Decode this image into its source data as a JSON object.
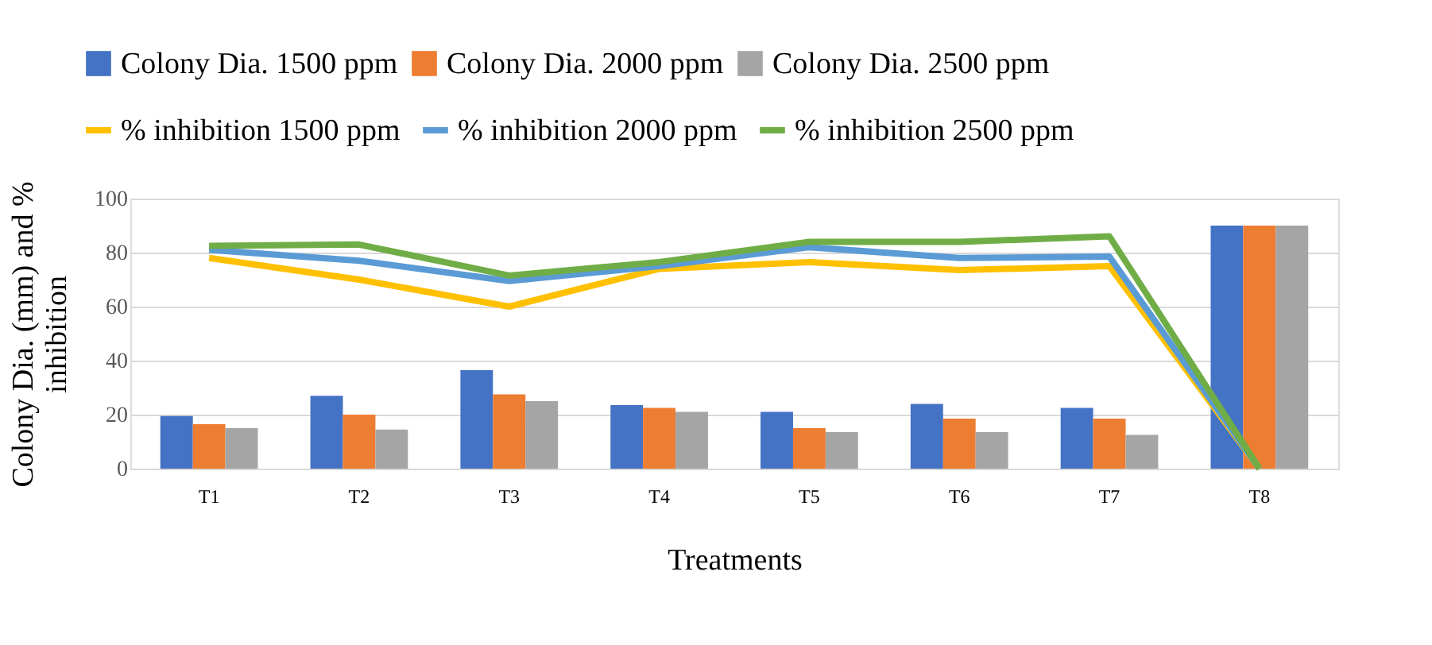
{
  "chart_data": {
    "type": "bar",
    "xlabel": "Treatments",
    "ylabel": "Colony Dia. (mm) and % inhibition",
    "categories": [
      "T1",
      "T2",
      "T3",
      "T4",
      "T5",
      "T6",
      "T7",
      "T8"
    ],
    "series": [
      {
        "name": "Colony Dia. 1500 ppm",
        "color": "#4472c4",
        "values": [
          19.5,
          27,
          36.5,
          23.5,
          21,
          24,
          22.5,
          90
        ]
      },
      {
        "name": "Colony Dia. 2000 ppm",
        "color": "#ed7d31",
        "values": [
          16.5,
          20,
          27.5,
          22.5,
          15,
          18.5,
          18.5,
          90
        ]
      },
      {
        "name": "Colony Dia. 2500 ppm",
        "color": "#a5a5a5",
        "values": [
          15,
          14.5,
          25,
          21,
          13.5,
          13.5,
          12.5,
          90
        ]
      },
      {
        "name": "% inhibition 1500 ppm",
        "type": "line",
        "color": "#ffc000",
        "values": [
          78,
          70,
          60,
          74,
          76.5,
          73.5,
          75,
          0
        ]
      },
      {
        "name": "% inhibition 2000 ppm",
        "type": "line",
        "color": "#5b9bd5",
        "values": [
          81,
          77,
          69.5,
          75,
          82,
          78,
          78.5,
          0
        ]
      },
      {
        "name": "% inhibition 2500 ppm",
        "type": "line",
        "color": "#70ad47",
        "values": [
          82.5,
          83,
          71.5,
          76.5,
          84,
          84,
          86,
          0
        ]
      }
    ],
    "ylim": [
      0,
      100
    ],
    "yticks": [
      0,
      20,
      40,
      60,
      80,
      100
    ],
    "grid": "y",
    "legend": "top",
    "marker": "none",
    "line_style": "solid"
  }
}
